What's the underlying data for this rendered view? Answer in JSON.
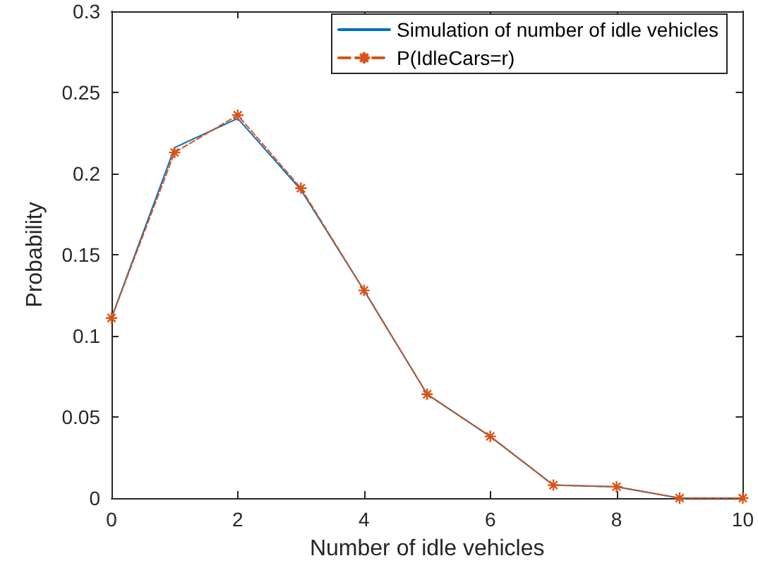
{
  "chart_data": {
    "type": "line",
    "xlabel": "Number of idle vehicles",
    "ylabel": "Probability",
    "x": [
      0,
      1,
      2,
      3,
      4,
      5,
      6,
      7,
      8,
      9,
      10
    ],
    "series": [
      {
        "name": "Simulation of number of idle vehicles",
        "color": "#0072bd",
        "marker": "none",
        "line_style": "solid",
        "values": [
          0.111,
          0.216,
          0.234,
          0.19,
          0.128,
          0.064,
          0.038,
          0.008,
          0.007,
          0,
          0
        ]
      },
      {
        "name": "P(IdleCars=r)",
        "color": "#d95319",
        "marker": "cross",
        "line_style": "dashed",
        "values": [
          0.111,
          0.213,
          0.236,
          0.191,
          0.128,
          0.064,
          0.038,
          0.008,
          0.007,
          0,
          0
        ]
      }
    ],
    "xlim": [
      0,
      10
    ],
    "xticks": [
      0,
      2,
      4,
      6,
      8,
      10
    ],
    "ylim": [
      0,
      0.3
    ],
    "yticks": [
      0,
      0.05,
      0.1,
      0.15,
      0.2,
      0.25,
      0.3
    ],
    "legend": "top right",
    "grid": false
  }
}
